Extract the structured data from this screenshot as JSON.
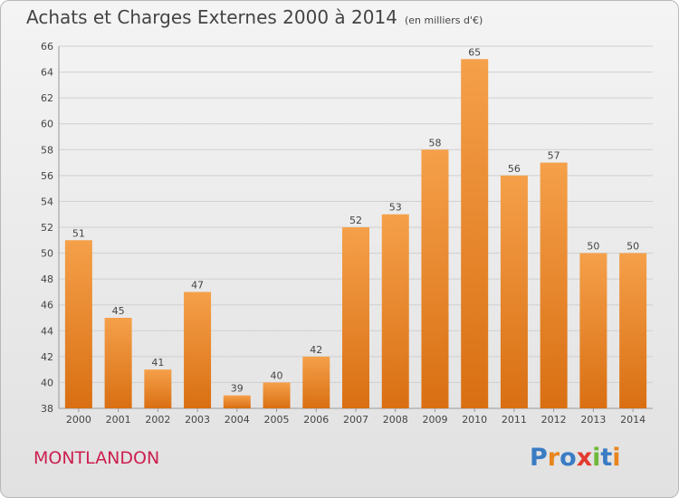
{
  "header": {
    "title": "Achats et Charges Externes 2000 à 2014",
    "unit": "(en milliers d'€)"
  },
  "footer": {
    "city": "MONTLANDON",
    "logo": "Proxiti"
  },
  "colors": {
    "bar_light": "#f5a04a",
    "bar_dark": "#d96f12",
    "grid": "#cfcfcf",
    "city": "#cc1f4f",
    "logo_letters": [
      "#3a7cc4",
      "#e8851c",
      "#3a7cc4",
      "#e23b2e",
      "#6fb83a",
      "#3a7cc4",
      "#e8851c"
    ]
  },
  "chart_data": {
    "type": "bar",
    "title": "Achats et Charges Externes 2000 à 2014",
    "subtitle": "(en milliers d'€)",
    "categories": [
      "2000",
      "2001",
      "2002",
      "2003",
      "2004",
      "2005",
      "2006",
      "2007",
      "2008",
      "2009",
      "2010",
      "2011",
      "2012",
      "2013",
      "2014"
    ],
    "values": [
      51,
      45,
      41,
      47,
      39,
      40,
      42,
      52,
      53,
      58,
      65,
      56,
      57,
      50,
      50
    ],
    "ylim": [
      38,
      66
    ],
    "yticks": [
      38,
      40,
      42,
      44,
      46,
      48,
      50,
      52,
      54,
      56,
      58,
      60,
      62,
      64,
      66
    ],
    "grid": true,
    "data_labels": true
  }
}
